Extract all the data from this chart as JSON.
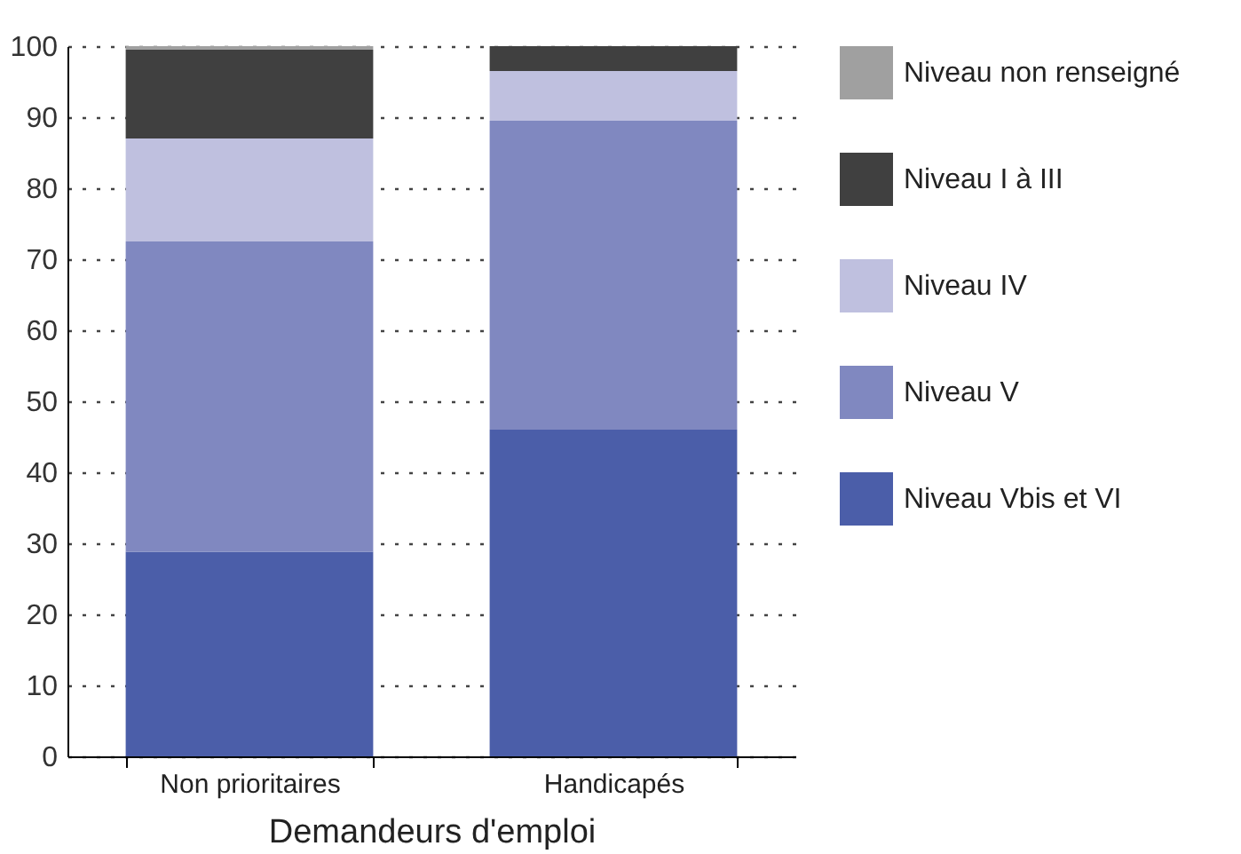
{
  "chart_data": {
    "type": "bar",
    "stacked": true,
    "xlabel": "Demandeurs d'emploi",
    "categories": [
      "Non prioritaires",
      "Handicapés"
    ],
    "series": [
      {
        "name": "Niveau Vbis et VI",
        "color": "#4b5ea9",
        "values": [
          28.8,
          46
        ]
      },
      {
        "name": "Niveau V",
        "color": "#8088c0",
        "values": [
          43.7,
          43.5
        ]
      },
      {
        "name": "Niveau IV",
        "color": "#bfc0df",
        "values": [
          14.5,
          7
        ]
      },
      {
        "name": "Niveau I à III",
        "color": "#404040",
        "values": [
          12.5,
          3.5
        ]
      },
      {
        "name": "Niveau non renseigné",
        "color": "#a0a0a0",
        "values": [
          0.5,
          0
        ]
      }
    ],
    "ylim": [
      0,
      100
    ],
    "yticks": [
      0,
      10,
      20,
      30,
      40,
      50,
      60,
      70,
      80,
      90,
      100
    ],
    "grid": "y",
    "legend": "right"
  }
}
